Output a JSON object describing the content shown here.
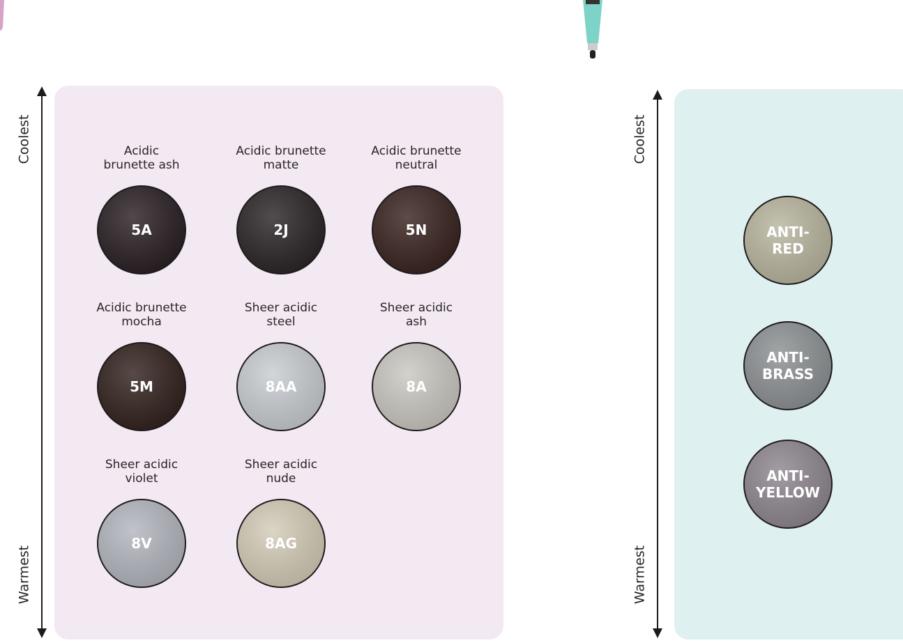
{
  "panels": [
    {
      "axis": {
        "top": "Coolest",
        "bottom": "Warmest"
      },
      "shades": [
        {
          "name": [
            "Acidic",
            "brunette ash"
          ],
          "code": [
            "5A"
          ],
          "color": "#2a2024"
        },
        {
          "name": [
            "Acidic brunette",
            "matte"
          ],
          "code": [
            "2J"
          ],
          "color": "#2b2526"
        },
        {
          "name": [
            "Acidic brunette",
            "neutral"
          ],
          "code": [
            "5N"
          ],
          "color": "#3a2420"
        },
        {
          "name": [
            "Acidic brunette",
            "mocha"
          ],
          "code": [
            "5M"
          ],
          "color": "#33221e"
        },
        {
          "name": [
            "Sheer acidic",
            "steel"
          ],
          "code": [
            "8AA"
          ],
          "color": "#c9cdd1"
        },
        {
          "name": [
            "Sheer acidic",
            "ash"
          ],
          "code": [
            "8A"
          ],
          "color": "#cbc8c2"
        },
        {
          "name": [
            "Sheer acidic",
            "violet"
          ],
          "code": [
            "8V"
          ],
          "color": "#b4b6bf"
        },
        {
          "name": [
            "Sheer acidic",
            "nude"
          ],
          "code": [
            "8AG"
          ],
          "color": "#d4ccb8"
        }
      ]
    },
    {
      "axis": {
        "top": "Coolest",
        "bottom": "Warmest"
      },
      "shades": [
        {
          "code": [
            "ANTI-",
            "RED"
          ],
          "color": "#b9b6a0"
        },
        {
          "code": [
            "ANTI-",
            "BRASS"
          ],
          "color": "#8e9294"
        },
        {
          "code": [
            "ANTI-",
            "YELLOW"
          ],
          "color": "#8f8790"
        }
      ]
    }
  ]
}
